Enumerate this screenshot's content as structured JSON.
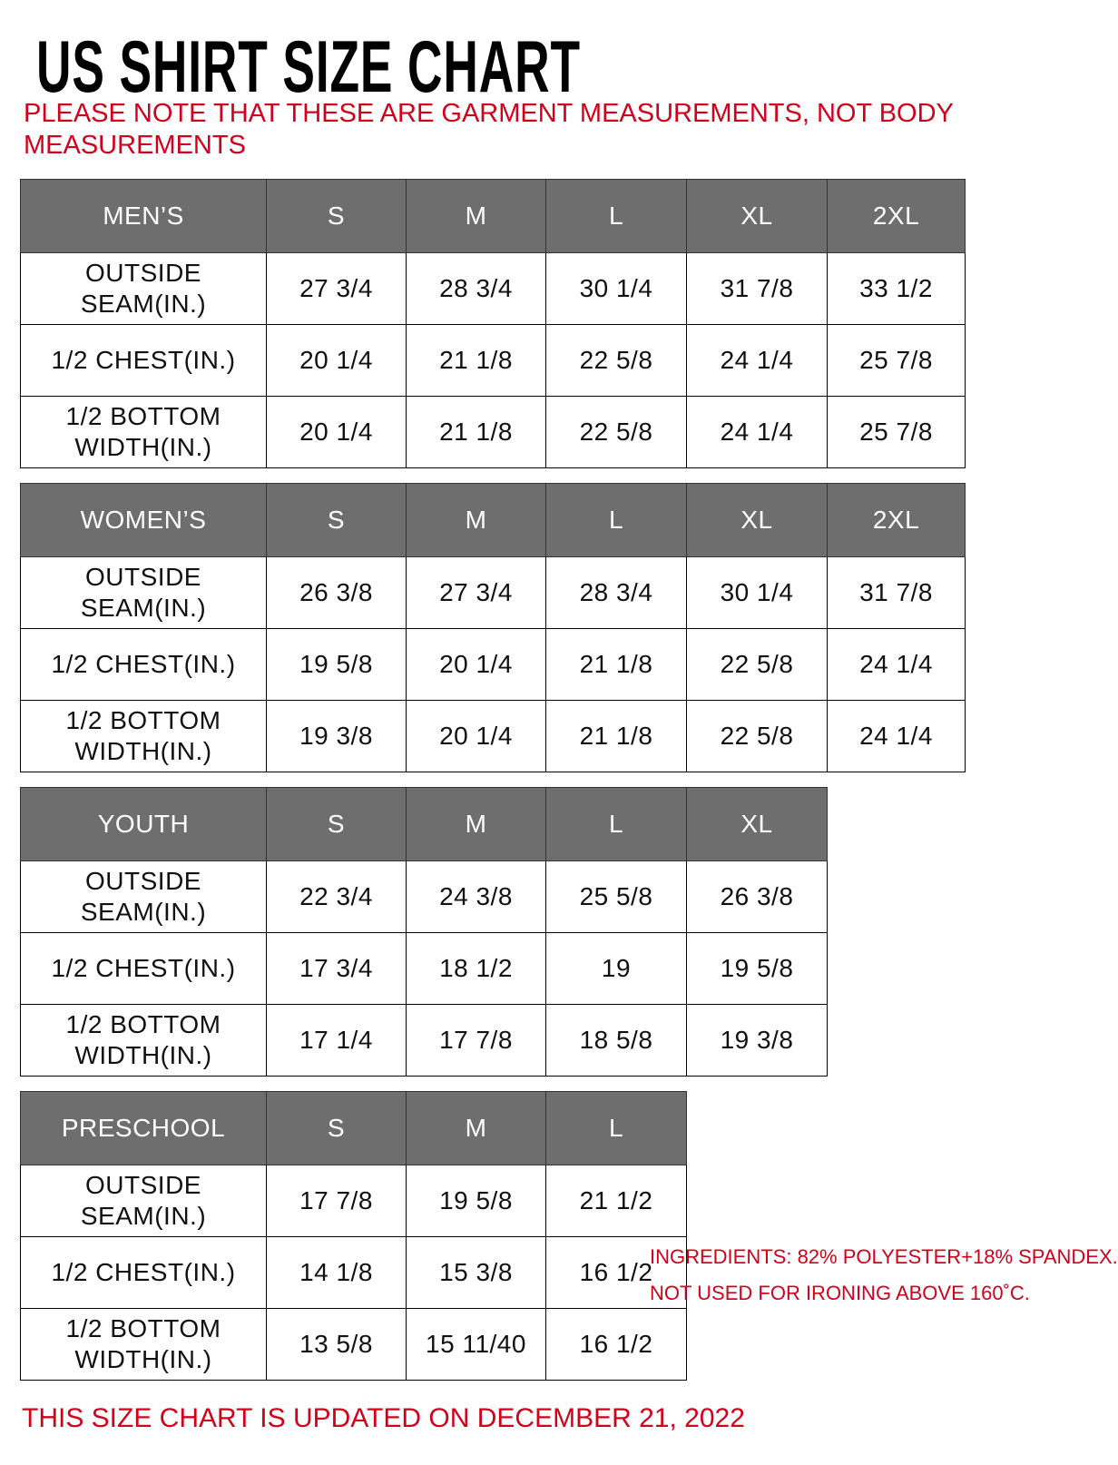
{
  "title": "US SHIRT SIZE CHART",
  "note": "PLEASE NOTE THAT THESE ARE GARMENT MEASUREMENTS, NOT BODY MEASUREMENTS",
  "colors": {
    "header_bg": "#6e6e6e",
    "accent_red": "#d0021b"
  },
  "sections": [
    {
      "name": "MEN’S",
      "sizes": [
        "S",
        "M",
        "L",
        "XL",
        "2XL"
      ],
      "rows": [
        {
          "label": "OUTSIDE SEAM(IN.)",
          "values": [
            "27 3/4",
            "28 3/4",
            "30 1/4",
            "31 7/8",
            "33 1/2"
          ]
        },
        {
          "label": "1/2 CHEST(IN.)",
          "values": [
            "20 1/4",
            "21 1/8",
            "22 5/8",
            "24 1/4",
            "25 7/8"
          ]
        },
        {
          "label": "1/2 BOTTOM WIDTH(IN.)",
          "values": [
            "20 1/4",
            "21 1/8",
            "22 5/8",
            "24 1/4",
            "25 7/8"
          ]
        }
      ]
    },
    {
      "name": "WOMEN’S",
      "sizes": [
        "S",
        "M",
        "L",
        "XL",
        "2XL"
      ],
      "rows": [
        {
          "label": "OUTSIDE SEAM(IN.)",
          "values": [
            "26 3/8",
            "27 3/4",
            "28 3/4",
            "30 1/4",
            "31 7/8"
          ]
        },
        {
          "label": "1/2 CHEST(IN.)",
          "values": [
            "19 5/8",
            "20 1/4",
            "21 1/8",
            "22 5/8",
            "24 1/4"
          ]
        },
        {
          "label": "1/2 BOTTOM WIDTH(IN.)",
          "values": [
            "19 3/8",
            "20 1/4",
            "21 1/8",
            "22 5/8",
            "24 1/4"
          ]
        }
      ]
    },
    {
      "name": "YOUTH",
      "sizes": [
        "S",
        "M",
        "L",
        "XL"
      ],
      "rows": [
        {
          "label": "OUTSIDE SEAM(IN.)",
          "values": [
            "22 3/4",
            "24 3/8",
            "25 5/8",
            "26 3/8"
          ]
        },
        {
          "label": "1/2 CHEST(IN.)",
          "values": [
            "17 3/4",
            "18 1/2",
            "19",
            "19 5/8"
          ]
        },
        {
          "label": "1/2 BOTTOM WIDTH(IN.)",
          "values": [
            "17 1/4",
            "17 7/8",
            "18 5/8",
            "19 3/8"
          ]
        }
      ]
    },
    {
      "name": "PRESCHOOL",
      "sizes": [
        "S",
        "M",
        "L"
      ],
      "rows": [
        {
          "label": "OUTSIDE SEAM(IN.)",
          "values": [
            "17 7/8",
            "19 5/8",
            "21 1/2"
          ]
        },
        {
          "label": "1/2 CHEST(IN.)",
          "values": [
            "14 1/8",
            "15 3/8",
            "16 1/2"
          ]
        },
        {
          "label": "1/2 BOTTOM WIDTH(IN.)",
          "values": [
            "13 5/8",
            "15 11/40",
            "16 1/2"
          ]
        }
      ]
    }
  ],
  "info": {
    "ingredients": "INGREDIENTS: 82% POLYESTER+18% SPANDEX.",
    "ironing": "NOT USED FOR IRONING ABOVE 160˚C."
  },
  "footer": "THIS SIZE CHART IS UPDATED ON DECEMBER 21, 2022"
}
